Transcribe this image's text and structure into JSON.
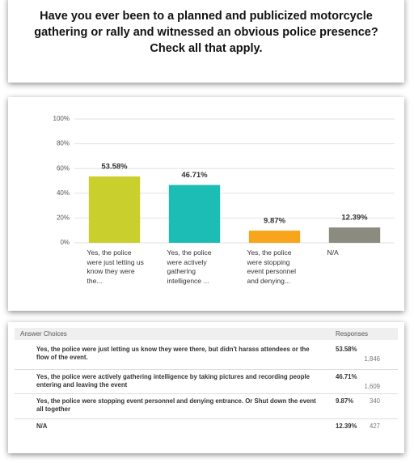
{
  "chart_data": {
    "type": "bar",
    "title": "Have you ever been to a planned and publicized motorcycle gathering or rally and witnessed an obvious police presence? Check all that apply.",
    "categories": [
      "Yes, the police were just letting us know they were the...",
      "Yes, the police were actively gathering intelligence ...",
      "Yes, the police were stopping event personnel and denying...",
      "N/A"
    ],
    "values": [
      53.58,
      46.71,
      9.87,
      12.39
    ],
    "value_labels": [
      "53.58%",
      "46.71%",
      "9.87%",
      "12.39%"
    ],
    "colors": [
      "#c9cf2c",
      "#1bbdb4",
      "#f7a51d",
      "#8b8c7f"
    ],
    "ylim": [
      0,
      100
    ],
    "yticks": [
      {
        "value": 0,
        "label": "0%"
      },
      {
        "value": 20,
        "label": "20%"
      },
      {
        "value": 40,
        "label": "40%"
      },
      {
        "value": 60,
        "label": "60%"
      },
      {
        "value": 80,
        "label": "80%"
      },
      {
        "value": 100,
        "label": "100%"
      }
    ],
    "grid": true
  },
  "table": {
    "header": [
      "Answer Choices",
      "Responses"
    ],
    "rows": [
      [
        "Yes, the police were just letting us know they were there, but didn't harass attendees or the flow of the event.",
        "53.58%",
        "1,846"
      ],
      [
        "Yes, the police were actively gathering intelligence by taking pictures and recording people entering and leaving the event",
        "46.71%",
        "1,609"
      ],
      [
        "Yes, the police were stopping event personnel and denying entrance. Or Shut down the event all together",
        "9.87%",
        "340"
      ],
      [
        "N/A",
        "12.39%",
        "427"
      ]
    ]
  }
}
